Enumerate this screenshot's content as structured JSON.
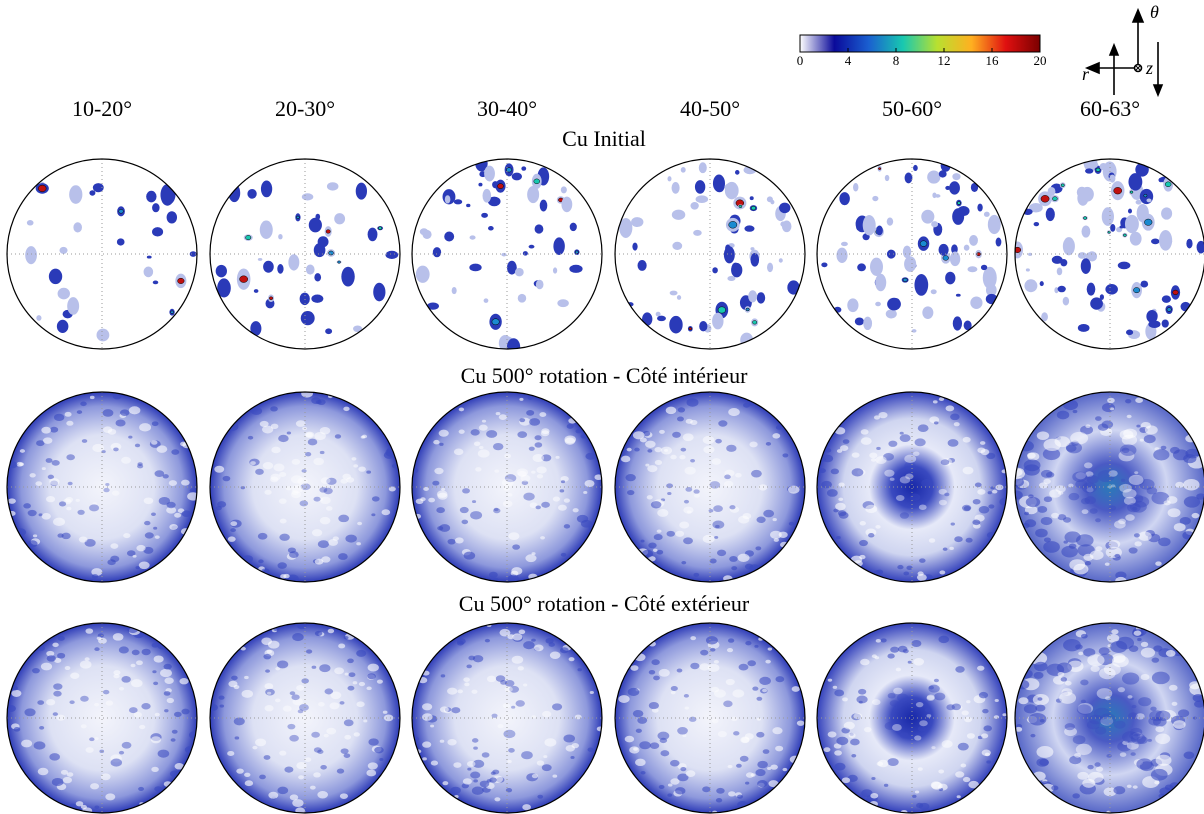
{
  "colorbar": {
    "lim": [
      0,
      20
    ],
    "ticks": [
      0,
      4,
      8,
      12,
      16,
      20
    ],
    "colormap": [
      "#ffffff",
      "#0a0a9a",
      "#1a5fd0",
      "#18c8b0",
      "#b8e030",
      "#ffb020",
      "#e01010",
      "#7a0000"
    ]
  },
  "axes_icon": {
    "theta": "θ",
    "r": "r",
    "z": "z"
  },
  "column_labels": [
    "10-20°",
    "20-30°",
    "30-40°",
    "40-50°",
    "50-60°",
    "60-63°"
  ],
  "rows": [
    {
      "title": "Cu Initial"
    },
    {
      "title": "Cu 500° rotation - Côté intérieur"
    },
    {
      "title": "Cu 500° rotation - Côté extérieur"
    }
  ]
}
